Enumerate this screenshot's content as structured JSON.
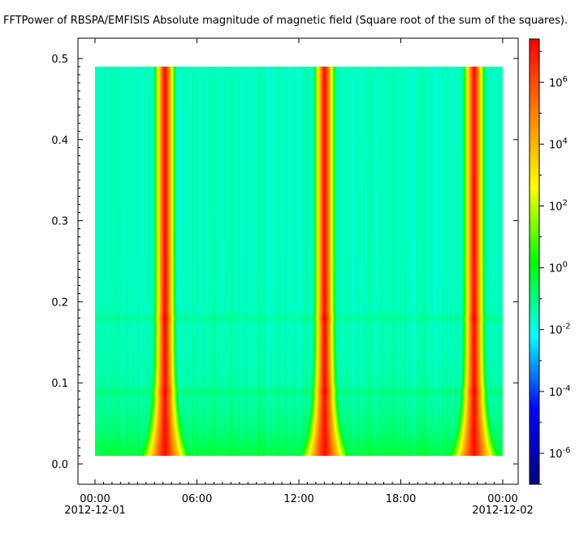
{
  "chart_data": {
    "type": "heatmap",
    "title": "FFTPower of RBSPA/EMFISIS  Absolute magnitude of magnetic field (Square root of the sum of the squares).",
    "xlabel": "",
    "ylabel": "",
    "x_axis": {
      "range": [
        "2012-12-01 00:00",
        "2012-12-02 00:00"
      ],
      "ticks": [
        {
          "label": "00:00",
          "sublabel": "2012-12-01",
          "hour": 0
        },
        {
          "label": "06:00",
          "sublabel": "",
          "hour": 6
        },
        {
          "label": "12:00",
          "sublabel": "",
          "hour": 12
        },
        {
          "label": "18:00",
          "sublabel": "",
          "hour": 18
        },
        {
          "label": "00:00",
          "sublabel": "2012-12-02",
          "hour": 24
        }
      ]
    },
    "y_axis": {
      "range": [
        0.0,
        0.5
      ],
      "ticks": [
        "0.0",
        "0.1",
        "0.2",
        "0.3",
        "0.4",
        "0.5"
      ],
      "data_range": [
        0.01,
        0.49
      ]
    },
    "colorbar": {
      "scale": "log",
      "range_exponent": [
        -7,
        7.4
      ],
      "tick_exponents": [
        -6,
        -4,
        -2,
        0,
        2,
        4,
        6
      ],
      "colormap": [
        "#000080",
        "#0000ff",
        "#00ffff",
        "#00ff00",
        "#ffff00",
        "#ff8000",
        "#ff0000"
      ]
    },
    "data_time_range_hours": [
      0,
      24
    ],
    "peaks_hours": [
      4.1,
      13.5,
      22.3
    ],
    "bands_frequency": [
      0.09,
      0.18
    ],
    "grid": false
  }
}
